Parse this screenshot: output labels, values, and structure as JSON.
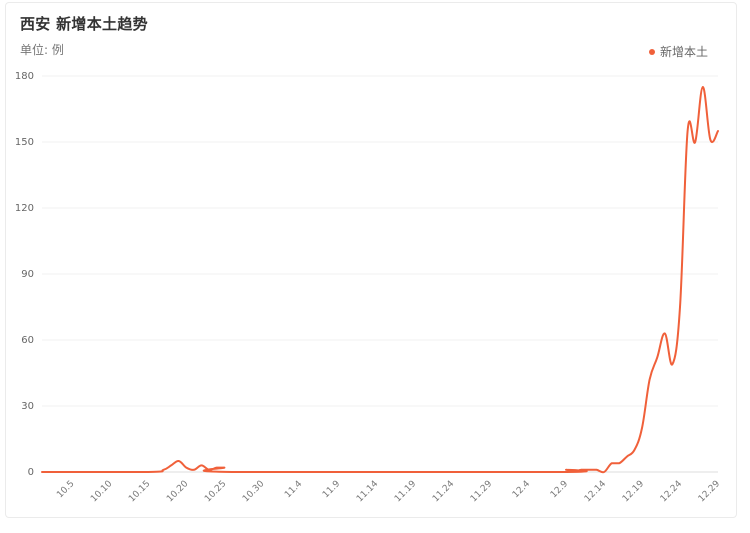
{
  "title": "西安 新增本土趋势",
  "unit_label": "单位: 例",
  "legend": {
    "label": "新增本土",
    "color": "#F0603A"
  },
  "chart_data": {
    "type": "line",
    "title": "西安 新增本土趋势",
    "ylabel": "单位: 例",
    "xlabel": "",
    "ylim": [
      0,
      180
    ],
    "y_ticks": [
      0,
      30,
      60,
      90,
      120,
      150,
      180
    ],
    "grid": true,
    "legend_position": "top-right",
    "x_tick_labels": [
      "10.5",
      "10.10",
      "10.15",
      "10.20",
      "10.25",
      "10.30",
      "11.4",
      "11.9",
      "11.14",
      "11.19",
      "11.24",
      "11.29",
      "12.4",
      "12.9",
      "12.14",
      "12.19",
      "12.24",
      "12.29"
    ],
    "series": [
      {
        "name": "新增本土",
        "color": "#F0603A",
        "points": [
          {
            "x": "10.1",
            "y": 0
          },
          {
            "x": "10.15",
            "y": 0
          },
          {
            "x": "10.17",
            "y": 1
          },
          {
            "x": "10.18",
            "y": 3
          },
          {
            "x": "10.19",
            "y": 5
          },
          {
            "x": "10.20",
            "y": 2
          },
          {
            "x": "10.21",
            "y": 1
          },
          {
            "x": "10.22",
            "y": 3
          },
          {
            "x": "10.23",
            "y": 1
          },
          {
            "x": "10.24",
            "y": 2
          },
          {
            "x": "10.25",
            "y": 2
          },
          {
            "x": "10.26",
            "y": 0
          },
          {
            "x": "12.8",
            "y": 0
          },
          {
            "x": "12.9",
            "y": 1
          },
          {
            "x": "12.10",
            "y": 0
          },
          {
            "x": "12.11",
            "y": 1
          },
          {
            "x": "12.12",
            "y": 1
          },
          {
            "x": "12.13",
            "y": 1
          },
          {
            "x": "12.14",
            "y": 0
          },
          {
            "x": "12.15",
            "y": 4
          },
          {
            "x": "12.16",
            "y": 4
          },
          {
            "x": "12.17",
            "y": 7
          },
          {
            "x": "12.18",
            "y": 10
          },
          {
            "x": "12.19",
            "y": 20
          },
          {
            "x": "12.20",
            "y": 42
          },
          {
            "x": "12.21",
            "y": 52
          },
          {
            "x": "12.22",
            "y": 63
          },
          {
            "x": "12.23",
            "y": 49
          },
          {
            "x": "12.24",
            "y": 75
          },
          {
            "x": "12.25",
            "y": 155
          },
          {
            "x": "12.26",
            "y": 150
          },
          {
            "x": "12.27",
            "y": 175
          },
          {
            "x": "12.28",
            "y": 151
          },
          {
            "x": "12.29",
            "y": 155
          }
        ]
      }
    ]
  }
}
